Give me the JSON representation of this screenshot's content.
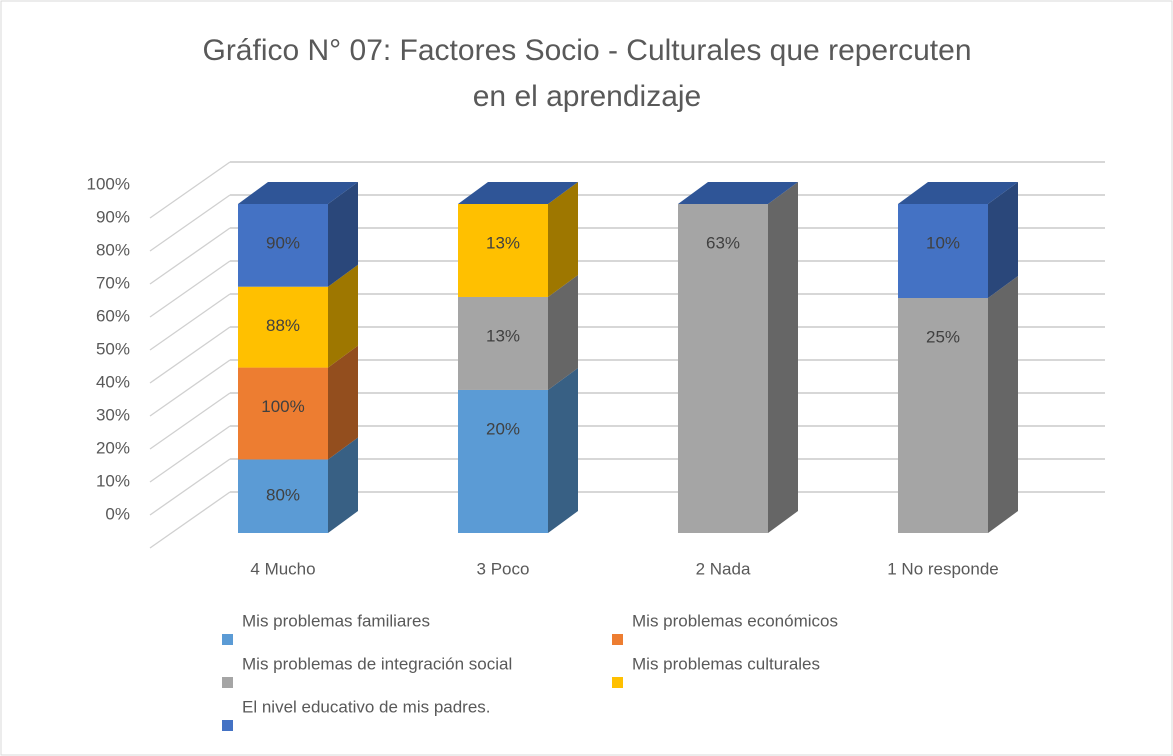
{
  "chart_data": {
    "type": "bar3d",
    "stacking": "percent",
    "title": "Gráfico N° 07: Factores Socio - Culturales que repercuten en el aprendizaje",
    "categories": [
      "4 Mucho",
      "3 Poco",
      "2 Nada",
      "1 No responde"
    ],
    "series": [
      {
        "name": "Mis problemas familiares",
        "color": "#5b9bd5",
        "values": [
          80,
          20,
          null,
          null
        ],
        "value_labels": [
          "80%",
          "20%",
          null,
          null
        ]
      },
      {
        "name": "Mis problemas económicos",
        "color": "#ed7d31",
        "values": [
          100,
          null,
          null,
          null
        ],
        "value_labels": [
          "100%",
          null,
          null,
          null
        ]
      },
      {
        "name": "Mis problemas de integración social",
        "color": "#a5a5a5",
        "values": [
          null,
          13,
          63,
          25
        ],
        "value_labels": [
          null,
          "13%",
          "63%",
          "25%"
        ]
      },
      {
        "name": "Mis problemas culturales",
        "color": "#ffc000",
        "values": [
          88,
          13,
          null,
          null
        ],
        "value_labels": [
          "88%",
          "13%",
          null,
          null
        ]
      },
      {
        "name": "El nivel educativo de mis padres.",
        "color": "#4472c4",
        "values": [
          90,
          null,
          null,
          10
        ],
        "value_labels": [
          "90%",
          null,
          null,
          "10%"
        ]
      }
    ],
    "ylim": [
      0,
      100
    ],
    "yticks": [
      {
        "value": 0,
        "label": "0%"
      },
      {
        "value": 10,
        "label": "10%"
      },
      {
        "value": 20,
        "label": "20%"
      },
      {
        "value": 30,
        "label": "30%"
      },
      {
        "value": 40,
        "label": "40%"
      },
      {
        "value": 50,
        "label": "50%"
      },
      {
        "value": 60,
        "label": "60%"
      },
      {
        "value": 70,
        "label": "70%"
      },
      {
        "value": 80,
        "label": "80%"
      },
      {
        "value": 90,
        "label": "90%"
      },
      {
        "value": 100,
        "label": "100%"
      }
    ],
    "grid": true,
    "legend": "bottom"
  }
}
